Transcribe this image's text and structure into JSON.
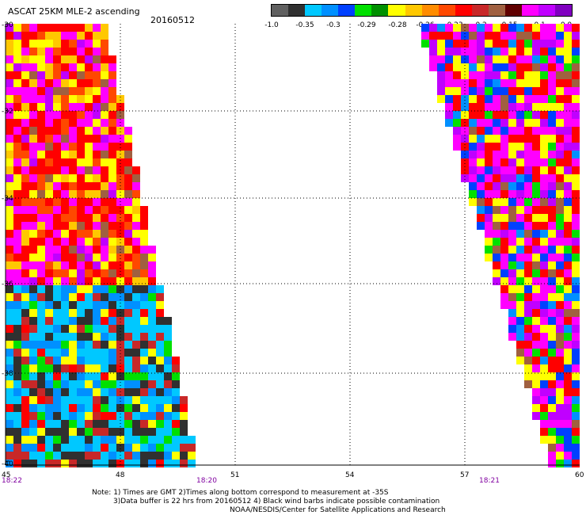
{
  "header": {
    "title": "ASCAT 25KM MLE-2 ascending",
    "date": "20160512"
  },
  "colorbar": {
    "colors": [
      "#606060",
      "#303030",
      "#00c8ff",
      "#0090ff",
      "#0040ff",
      "#00e000",
      "#009000",
      "#ffff00",
      "#ffc800",
      "#ff8c00",
      "#ff4800",
      "#ff0000",
      "#c82828",
      "#a06040",
      "#600000",
      "#ff00ff",
      "#c000ff",
      "#8000c0"
    ],
    "labels": [
      "-1.0",
      "-0.35",
      "-0.3",
      "-0.29",
      "-0.28",
      "-0.26",
      "-0.23",
      "-0.2",
      "-0.15",
      "-0.1",
      "0.0"
    ]
  },
  "axes": {
    "lon_ticks": [
      "45",
      "48",
      "51",
      "54",
      "57",
      "60"
    ],
    "lat_ticks": [
      "-30",
      "-32",
      "-34",
      "-36",
      "-38",
      "-40"
    ],
    "time_labels": [
      "18:22",
      "18:20",
      "18:21"
    ]
  },
  "notes": {
    "line1": "Note: 1) Times are GMT 2)Times along bottom correspond to measurement at -35S",
    "line2": "3)Data buffer is 22 hrs from 20160512 4) Black wind barbs indicate possible contamination",
    "line3": "NOAA/NESDIS/Center for Satellite Applications and Research"
  }
}
